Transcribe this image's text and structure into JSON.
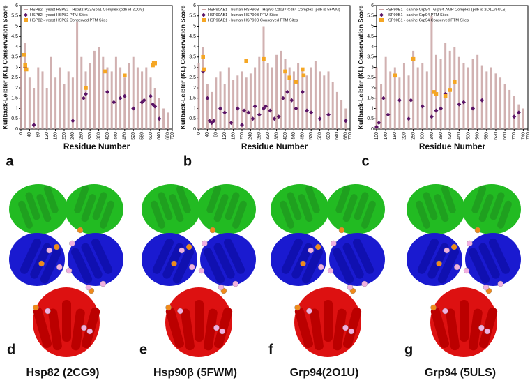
{
  "chart_data": [
    {
      "type": "bar",
      "panel_label": "a",
      "y_label": "Kullback-Leibler (KL) Conservation Score",
      "x_label": "Residue Number",
      "xlim": [
        0,
        700
      ],
      "xticks": [
        0,
        40,
        80,
        120,
        160,
        200,
        240,
        280,
        320,
        360,
        400,
        440,
        480,
        520,
        560,
        600,
        640,
        680,
        700
      ],
      "ylim": [
        0,
        6
      ],
      "yticks": [
        0,
        0.5,
        1,
        1.5,
        2,
        2.5,
        3,
        3.5,
        4,
        4.5,
        5,
        5.5,
        6
      ],
      "series": [
        {
          "name": "HSP82 - yeast HSP82 - Hsp82-P23/Sba1 Complex (pdb id 2CG9)",
          "kind": "bar",
          "color": "#c9a3a3",
          "x": [
            0,
            20,
            40,
            60,
            80,
            100,
            120,
            140,
            160,
            180,
            200,
            220,
            240,
            260,
            280,
            300,
            320,
            340,
            360,
            380,
            400,
            420,
            440,
            460,
            480,
            500,
            520,
            540,
            560,
            580,
            600,
            620,
            640,
            660,
            680
          ],
          "values": [
            3.5,
            4.2,
            2.5,
            2.0,
            3.0,
            2.8,
            2.0,
            3.5,
            2.5,
            3.0,
            2.2,
            2.8,
            2.5,
            5.2,
            3.5,
            2.8,
            3.2,
            3.8,
            4.0,
            3.5,
            3.0,
            2.8,
            3.5,
            3.0,
            2.5,
            3.2,
            3.5,
            3.0,
            2.8,
            3.0,
            2.5,
            2.0,
            1.5,
            1.0,
            0.8
          ]
        },
        {
          "name": "HSP82 - yeast HSP82 PTM Sites",
          "kind": "diamond",
          "color": "#5b1466",
          "x": [
            20,
            60,
            240,
            290,
            300,
            400,
            430,
            460,
            480,
            520,
            560,
            570,
            600,
            610,
            620,
            640
          ],
          "values": [
            3.0,
            0.2,
            0.4,
            1.5,
            1.7,
            1.8,
            1.3,
            1.5,
            1.6,
            1.0,
            1.3,
            1.4,
            1.6,
            1.2,
            1.1,
            0.5
          ]
        },
        {
          "name": "HSP82 - yeast HSP82 Conserved PTM Sites",
          "kind": "square",
          "color": "#f5a623",
          "x": [
            15,
            20,
            25,
            300,
            390,
            480,
            610,
            615,
            620
          ],
          "values": [
            3.6,
            3.1,
            2.9,
            2.0,
            2.8,
            2.6,
            3.1,
            3.2,
            3.2
          ]
        }
      ]
    },
    {
      "type": "bar",
      "panel_label": "b",
      "y_label": "Kullback-Leibler (KL) Conservation Score",
      "x_label": "Residue Number",
      "xlim": [
        0,
        700
      ],
      "xticks": [
        0,
        40,
        80,
        120,
        160,
        200,
        240,
        280,
        320,
        360,
        400,
        440,
        480,
        520,
        560,
        600,
        640,
        680,
        700
      ],
      "ylim": [
        0,
        6
      ],
      "yticks": [
        0,
        0.5,
        1,
        1.5,
        2,
        2.5,
        3,
        3.5,
        4,
        4.5,
        5,
        5.5,
        6
      ],
      "series": [
        {
          "name": "HSP90AB1 - human HSP90B - Hsp90-Cdc37-Cdk4 Complex (pdb id 5FWM)",
          "kind": "bar",
          "color": "#c9a3a3",
          "x": [
            0,
            20,
            40,
            60,
            80,
            100,
            120,
            140,
            160,
            180,
            200,
            220,
            240,
            260,
            280,
            300,
            320,
            340,
            360,
            380,
            400,
            420,
            440,
            460,
            480,
            500,
            520,
            540,
            560,
            580,
            600,
            620,
            640,
            660,
            680
          ],
          "values": [
            3.2,
            4.0,
            2.2,
            1.8,
            2.5,
            2.8,
            2.2,
            3.0,
            2.4,
            2.6,
            2.8,
            2.5,
            2.7,
            3.0,
            3.5,
            5.0,
            3.2,
            3.0,
            3.6,
            3.8,
            3.4,
            3.0,
            2.8,
            3.2,
            2.9,
            2.6,
            3.0,
            3.3,
            2.8,
            2.6,
            2.8,
            2.3,
            1.8,
            1.4,
            1.0
          ]
        },
        {
          "name": "HSP90AB1 - human HSP90B  PTM Sites",
          "kind": "diamond",
          "color": "#5b1466",
          "x": [
            20,
            40,
            50,
            60,
            70,
            100,
            120,
            150,
            180,
            200,
            210,
            230,
            250,
            260,
            280,
            300,
            310,
            330,
            350,
            370,
            390,
            410,
            430,
            450,
            480,
            500,
            520,
            560,
            600,
            680
          ],
          "values": [
            2.8,
            1.5,
            0.4,
            0.3,
            0.4,
            1.0,
            0.8,
            0.3,
            1.0,
            0.2,
            0.9,
            0.8,
            0.5,
            1.1,
            0.7,
            1.0,
            1.1,
            0.9,
            0.5,
            0.6,
            1.5,
            1.8,
            1.4,
            1.0,
            1.8,
            0.9,
            0.8,
            0.5,
            0.7,
            0.4
          ]
        },
        {
          "name": "HSP90AB1 - human HSP90B  Conserved PTM Sites",
          "kind": "square",
          "color": "#f5a623",
          "x": [
            20,
            25,
            220,
            300,
            400,
            420,
            450,
            480,
            485
          ],
          "values": [
            3.5,
            2.9,
            3.3,
            3.4,
            2.8,
            2.5,
            2.3,
            2.9,
            2.6
          ]
        }
      ]
    },
    {
      "type": "bar",
      "panel_label": "c",
      "y_label": "Kullback-Leibler (KL) Conservation Score",
      "x_label": "Residue Number",
      "xlim": [
        100,
        760
      ],
      "xticks": [
        100,
        140,
        180,
        220,
        260,
        300,
        340,
        380,
        420,
        460,
        500,
        540,
        580,
        620,
        660,
        700,
        740,
        760
      ],
      "ylim": [
        0,
        6
      ],
      "yticks": [
        0,
        0.5,
        1,
        1.5,
        2,
        2.5,
        3,
        3.5,
        4,
        4.5,
        5,
        5.5,
        6
      ],
      "series": [
        {
          "name": "HSP90B1 - canine Grp94 - Grp94-AMP Complex (pdb id 2O1U/5ULS)",
          "kind": "bar",
          "color": "#c9a3a3",
          "x": [
            100,
            120,
            140,
            160,
            180,
            200,
            220,
            240,
            260,
            280,
            300,
            320,
            340,
            360,
            380,
            400,
            420,
            440,
            460,
            480,
            500,
            520,
            540,
            560,
            580,
            600,
            620,
            640,
            660,
            680,
            700,
            720,
            740
          ],
          "values": [
            3.0,
            2.2,
            3.5,
            2.8,
            3.0,
            2.5,
            3.2,
            2.6,
            3.8,
            3.0,
            3.2,
            2.8,
            5.5,
            3.6,
            3.4,
            4.2,
            3.8,
            4.0,
            3.5,
            3.2,
            3.0,
            3.4,
            3.6,
            3.1,
            2.8,
            3.0,
            2.7,
            2.5,
            2.2,
            1.9,
            1.6,
            1.2,
            1.0
          ]
        },
        {
          "name": "HSP90B1 - canine Grp94  PTM Sites",
          "kind": "diamond",
          "color": "#5b1466",
          "x": [
            100,
            110,
            130,
            150,
            200,
            240,
            250,
            300,
            340,
            360,
            380,
            400,
            420,
            460,
            480,
            520,
            560,
            700,
            720
          ],
          "values": [
            0.1,
            0.3,
            1.5,
            0.7,
            1.4,
            0.5,
            1.4,
            1.1,
            0.6,
            0.9,
            1.0,
            1.7,
            1.9,
            1.2,
            1.3,
            1.0,
            1.4,
            0.6,
            0.8
          ]
        },
        {
          "name": "HSP90B1 - canine Grp94  Conserved PTM Sites",
          "kind": "square",
          "color": "#f5a623",
          "x": [
            180,
            260,
            350,
            360,
            400,
            420,
            440
          ],
          "values": [
            2.6,
            3.4,
            1.8,
            1.7,
            1.6,
            1.9,
            2.3
          ]
        }
      ]
    }
  ],
  "structures": [
    {
      "label": "d",
      "caption": "Hsp82 (2CG9)"
    },
    {
      "label": "e",
      "caption": "Hsp90β (5FWM)"
    },
    {
      "label": "f",
      "caption": "Grp94(2O1U)"
    },
    {
      "label": "g",
      "caption": "Grp94 (5ULS)"
    }
  ]
}
